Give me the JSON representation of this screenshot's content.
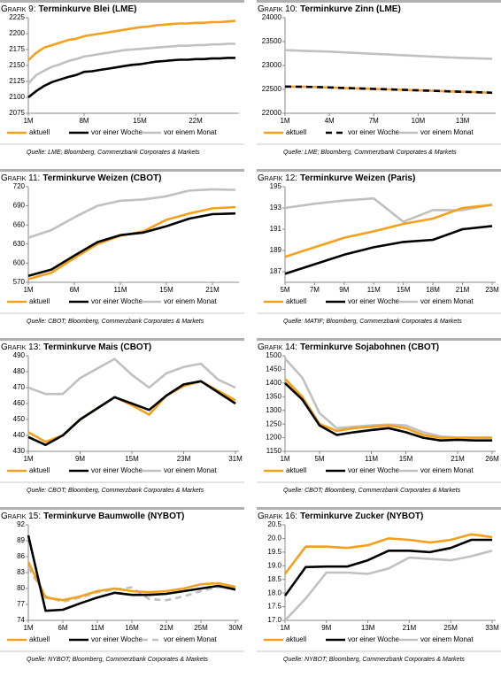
{
  "chart_data": [
    {
      "type": "line",
      "figure_label": "Grafik 9:",
      "title": "Terminkurve Blei (LME)",
      "source": "Quelle: LME; Bloomberg, Commerzbank Corporates & Markets",
      "categories": [
        "1M",
        null,
        null,
        null,
        null,
        null,
        null,
        "8M",
        null,
        null,
        null,
        null,
        null,
        null,
        "15M",
        null,
        null,
        null,
        null,
        null,
        null,
        "22M",
        null,
        null,
        null,
        null,
        null
      ],
      "ylim": [
        2075,
        2225
      ],
      "yticks": [
        2075,
        2100,
        2125,
        2150,
        2175,
        2200,
        2225
      ],
      "series": [
        {
          "name": "aktuell",
          "color": "#f5a01a",
          "values": [
            2158,
            2170,
            2178,
            2182,
            2186,
            2190,
            2192,
            2196,
            2198,
            2200,
            2202,
            2204,
            2206,
            2208,
            2210,
            2211,
            2213,
            2214,
            2215,
            2216,
            2216,
            2217,
            2217,
            2218,
            2218,
            2219,
            2220
          ]
        },
        {
          "name": "vor einer Woche",
          "color": "#000000",
          "values": [
            2100,
            2110,
            2118,
            2124,
            2128,
            2132,
            2135,
            2140,
            2141,
            2143,
            2145,
            2147,
            2149,
            2151,
            2152,
            2154,
            2156,
            2157,
            2158,
            2159,
            2159,
            2160,
            2160,
            2161,
            2161,
            2162,
            2162
          ]
        },
        {
          "name": "vor einem Monat",
          "color": "#c0c0c0",
          "values": [
            2122,
            2135,
            2142,
            2148,
            2152,
            2157,
            2160,
            2164,
            2166,
            2168,
            2170,
            2172,
            2174,
            2175,
            2176,
            2177,
            2178,
            2179,
            2180,
            2181,
            2181,
            2182,
            2182,
            2183,
            2183,
            2184,
            2184
          ]
        }
      ]
    },
    {
      "type": "line",
      "figure_label": "Grafik 10:",
      "title": "Terminkurve Zinn (LME)",
      "source": "Quelle: LME; Bloomberg, Commerzbank Corporates & Markets",
      "categories": [
        "1M",
        null,
        null,
        "4M",
        null,
        null,
        "7M",
        null,
        null,
        "10M",
        null,
        null,
        "13M",
        null,
        null
      ],
      "ylim": [
        22000,
        24000
      ],
      "yticks": [
        22000,
        22500,
        23000,
        23500,
        24000
      ],
      "series": [
        {
          "name": "aktuell",
          "color": "#f5a01a",
          "values": [
            22560,
            22555,
            22550,
            22540,
            22530,
            22520,
            22510,
            22500,
            22490,
            22480,
            22470,
            22460,
            22450,
            22440,
            22430
          ]
        },
        {
          "name": "vor einer Woche",
          "color": "#000000",
          "dash": true,
          "values": [
            22560,
            22555,
            22550,
            22540,
            22530,
            22520,
            22510,
            22500,
            22490,
            22480,
            22470,
            22460,
            22450,
            22440,
            22430
          ]
        },
        {
          "name": "vor einem Monat",
          "color": "#c0c0c0",
          "values": [
            23320,
            23310,
            23300,
            23290,
            23275,
            23260,
            23245,
            23230,
            23215,
            23200,
            23185,
            23170,
            23160,
            23150,
            23140
          ]
        }
      ]
    },
    {
      "type": "line",
      "figure_label": "Grafik 11:",
      "title": "Terminkurve Weizen (CBOT)",
      "source": "Quelle: CBOT; Bloomberg, Commerzbank Corporates & Markets",
      "categories": [
        "1M",
        null,
        "6M",
        null,
        "11M",
        null,
        "15M",
        null,
        "21M",
        null
      ],
      "ylim": [
        570,
        720
      ],
      "yticks": [
        570,
        600,
        630,
        660,
        690,
        720
      ],
      "series": [
        {
          "name": "aktuell",
          "color": "#f5a01a",
          "values": [
            575,
            585,
            608,
            630,
            643,
            650,
            668,
            678,
            686,
            688
          ]
        },
        {
          "name": "vor einer Woche",
          "color": "#000000",
          "values": [
            580,
            590,
            612,
            633,
            644,
            648,
            658,
            670,
            677,
            678
          ]
        },
        {
          "name": "vor einem Monat",
          "color": "#c0c0c0",
          "values": [
            640,
            652,
            672,
            690,
            698,
            700,
            705,
            714,
            716,
            715
          ]
        }
      ]
    },
    {
      "type": "line",
      "figure_label": "Grafik 12:",
      "title": "Terminkurve Weizen (Paris)",
      "source": "Quelle: MATIF; Bloomberg, Commerzbank Corporates & Markets",
      "categories": [
        "5M",
        "7M",
        "9M",
        "11M",
        "15M",
        "18M",
        "21M",
        "23M"
      ],
      "ylim": [
        186,
        195
      ],
      "yticks": [
        187,
        189,
        191,
        193,
        195
      ],
      "series": [
        {
          "name": "aktuell",
          "color": "#f5a01a",
          "values": [
            188.4,
            189.3,
            190.2,
            190.8,
            191.5,
            192.0,
            193.0,
            193.3
          ]
        },
        {
          "name": "vor einer Woche",
          "color": "#000000",
          "values": [
            186.8,
            187.7,
            188.6,
            189.3,
            189.8,
            190.0,
            191.0,
            191.3
          ]
        },
        {
          "name": "vor einem Monat",
          "color": "#c0c0c0",
          "values": [
            193.0,
            193.4,
            193.7,
            193.9,
            191.7,
            192.8,
            192.8,
            193.3
          ]
        }
      ]
    },
    {
      "type": "line",
      "figure_label": "Grafik 13:",
      "title": "Terminkurve Mais (CBOT)",
      "source": "Quelle: CBOT; Bloomberg, Commerzbank Corporates & Markets",
      "categories": [
        "1M",
        null,
        null,
        "9M",
        null,
        null,
        "15M",
        null,
        null,
        "23M",
        null,
        null,
        "31M"
      ],
      "ylim": [
        430,
        490
      ],
      "yticks": [
        430,
        440,
        450,
        460,
        470,
        480,
        490
      ],
      "series": [
        {
          "name": "aktuell",
          "color": "#f5a01a",
          "values": [
            442,
            436,
            440,
            450,
            457,
            464,
            459,
            453,
            465,
            471,
            474,
            468,
            462
          ]
        },
        {
          "name": "vor einer Woche",
          "color": "#000000",
          "values": [
            439,
            434,
            440,
            450,
            457,
            464,
            460,
            456,
            465,
            472,
            474,
            467,
            460
          ]
        },
        {
          "name": "vor einem Monat",
          "color": "#c0c0c0",
          "values": [
            470,
            466,
            466,
            476,
            482,
            488,
            478,
            470,
            479,
            483,
            485,
            475,
            470
          ]
        }
      ]
    },
    {
      "type": "line",
      "figure_label": "Grafik 14:",
      "title": "Terminkurve Sojabohnen (CBOT)",
      "source": "Quelle: CBOT; Bloomberg, Commerzbank Corporates & Markets",
      "categories": [
        "1M",
        null,
        "5M",
        null,
        null,
        "11M",
        null,
        "15M",
        null,
        null,
        "21M",
        null,
        "26M"
      ],
      "ylim": [
        1150,
        1500
      ],
      "yticks": [
        1150,
        1200,
        1250,
        1300,
        1350,
        1400,
        1450,
        1500
      ],
      "series": [
        {
          "name": "aktuell",
          "color": "#f5a01a",
          "values": [
            1415,
            1350,
            1250,
            1225,
            1235,
            1240,
            1245,
            1235,
            1210,
            1200,
            1200,
            1200,
            1200
          ]
        },
        {
          "name": "vor einer Woche",
          "color": "#000000",
          "values": [
            1400,
            1340,
            1245,
            1210,
            1220,
            1228,
            1235,
            1220,
            1200,
            1190,
            1192,
            1190,
            1190
          ]
        },
        {
          "name": "vor einem Monat",
          "color": "#c0c0c0",
          "values": [
            1490,
            1420,
            1290,
            1235,
            1240,
            1245,
            1248,
            1245,
            1220,
            1205,
            1200,
            1200,
            1200
          ]
        }
      ]
    },
    {
      "type": "line",
      "figure_label": "Grafik 15:",
      "title": "Terminkurve Baumwolle (NYBOT)",
      "source": "Quelle: NYBOT; Bloomberg, Commerzbank Corporates & Markets",
      "categories": [
        "1M",
        null,
        "6M",
        null,
        "11M",
        null,
        "16M",
        null,
        "21M",
        null,
        "25M",
        null,
        "30M"
      ],
      "ylim": [
        74,
        92
      ],
      "yticks": [
        74,
        77,
        80,
        83,
        86,
        89,
        92
      ],
      "series": [
        {
          "name": "aktuell",
          "color": "#f5a01a",
          "values": [
            85,
            78.3,
            77.8,
            78.5,
            79.5,
            80,
            79.5,
            79.3,
            79.5,
            80,
            80.8,
            81,
            80.3
          ]
        },
        {
          "name": "vor einer Woche",
          "color": "#000000",
          "values": [
            90,
            75.8,
            76,
            77.2,
            78.3,
            79.2,
            78.8,
            78.8,
            79,
            79.5,
            80,
            80.5,
            79.8
          ]
        },
        {
          "name": "vor einem Monat",
          "color": "#c0c0c0",
          "dash": true,
          "values": [
            84,
            78.5,
            77.5,
            78.3,
            79.3,
            79.8,
            80.2,
            78,
            77.8,
            78.5,
            79.5,
            80.3,
            80
          ]
        }
      ]
    },
    {
      "type": "line",
      "figure_label": "Grafik 16:",
      "title": "Terminkurve Zucker (NYBOT)",
      "source": "Quelle: NYBOT; Bloomberg, Commerzbank Corporates & Markets",
      "categories": [
        "1M",
        null,
        "9M",
        null,
        "13M",
        null,
        "21M",
        null,
        "25M",
        null,
        "33M"
      ],
      "ylim": [
        17,
        20.5
      ],
      "yticks": [
        {
          "value": 17,
          "label": "17.0"
        },
        17.5,
        {
          "value": 18,
          "label": "18.0"
        },
        18.5,
        {
          "value": 19,
          "label": "19.0"
        },
        19.5,
        {
          "value": 20,
          "label": "20.0"
        },
        20.5
      ],
      "series": [
        {
          "name": "aktuell",
          "color": "#f5a01a",
          "values": [
            18.7,
            19.7,
            19.7,
            19.65,
            19.75,
            20.0,
            19.95,
            19.85,
            19.95,
            20.15,
            20.05
          ]
        },
        {
          "name": "vor einer Woche",
          "color": "#000000",
          "values": [
            17.9,
            18.95,
            18.97,
            18.97,
            19.2,
            19.55,
            19.55,
            19.5,
            19.65,
            19.95,
            19.95
          ]
        },
        {
          "name": "vor einem Monat",
          "color": "#c0c0c0",
          "values": [
            17.0,
            17.8,
            18.75,
            18.75,
            18.7,
            18.9,
            19.3,
            19.25,
            19.2,
            19.35,
            19.55
          ]
        }
      ]
    }
  ]
}
